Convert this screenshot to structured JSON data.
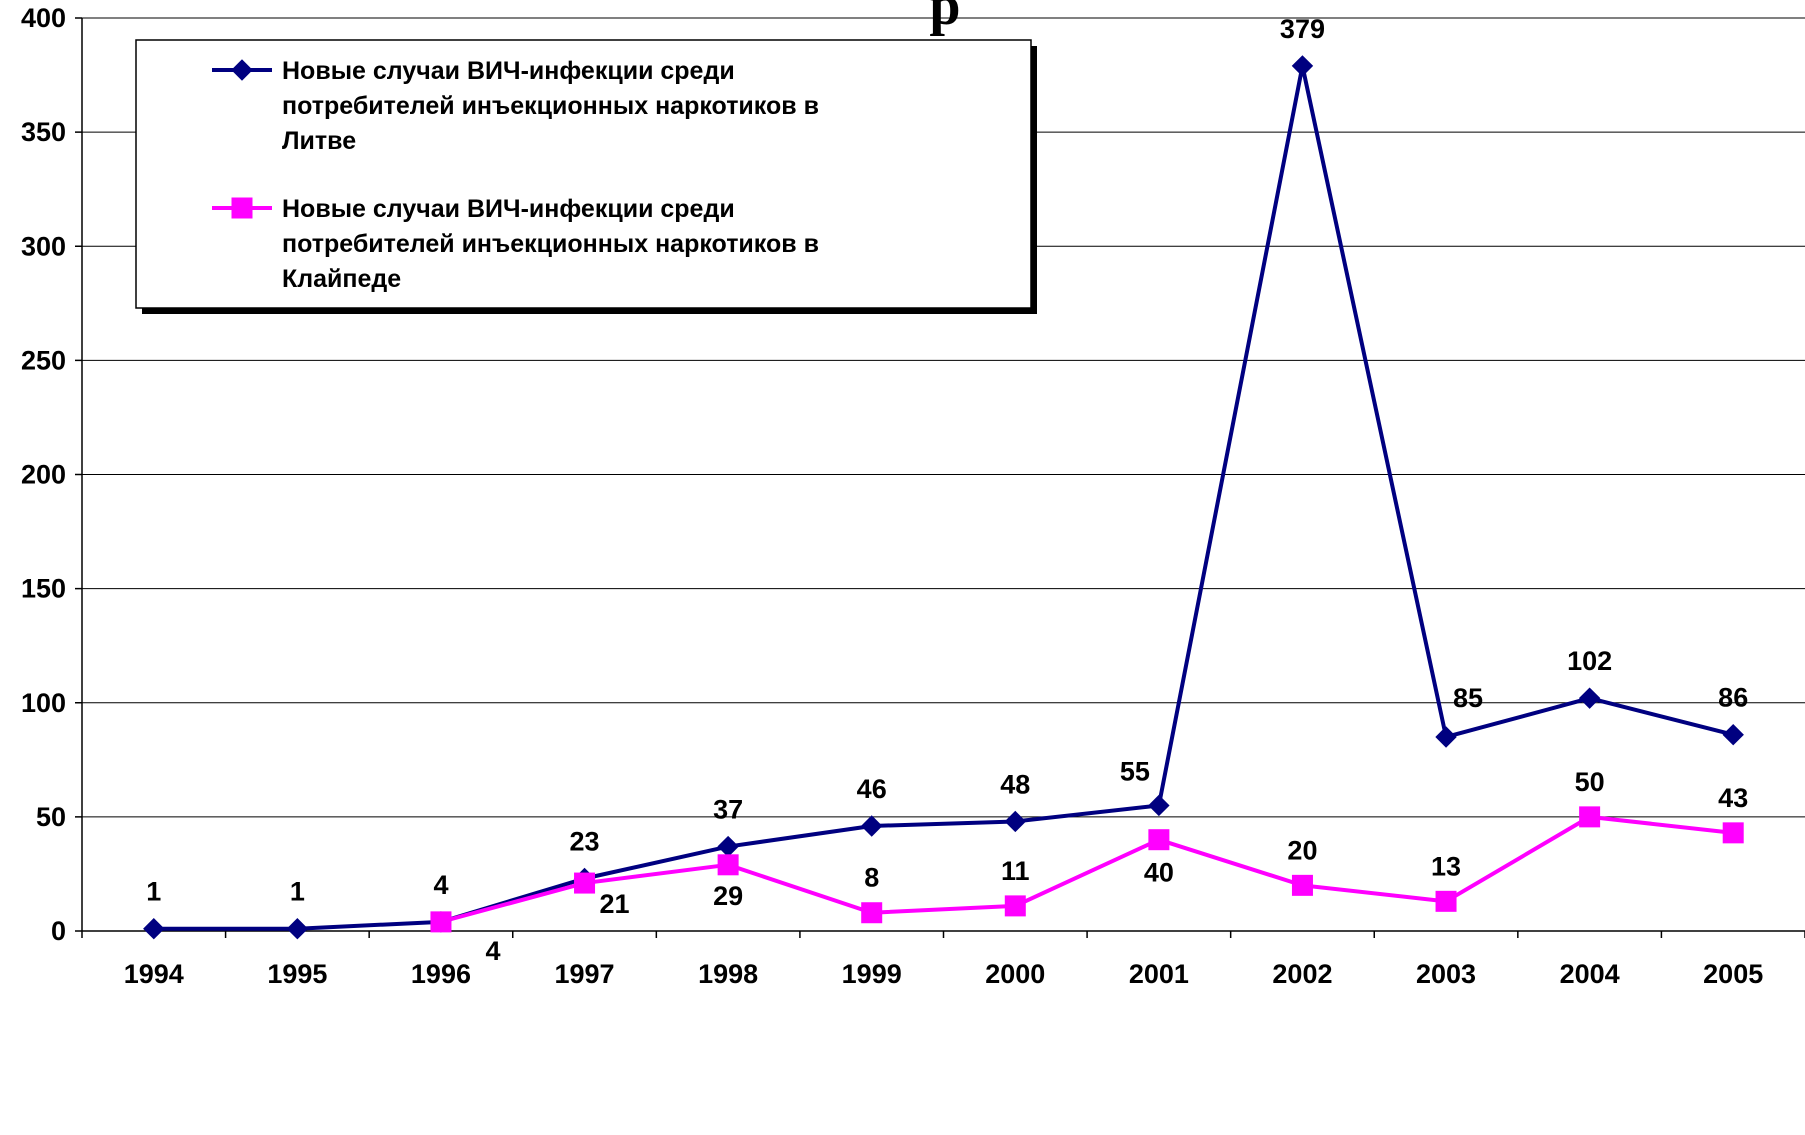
{
  "chart_data": {
    "type": "line",
    "title_fragment": "р",
    "categories": [
      "1994",
      "1995",
      "1996",
      "1997",
      "1998",
      "1999",
      "2000",
      "2001",
      "2002",
      "2003",
      "2004",
      "2005"
    ],
    "ylim": [
      0,
      400
    ],
    "yticks": [
      "0",
      "50",
      "100",
      "150",
      "200",
      "250",
      "300",
      "350",
      "400"
    ],
    "grid": true,
    "legend_position": "top-left",
    "series": [
      {
        "name_lines": [
          "Новые случаи ВИЧ-инфекции среди",
          "потребителей инъекционных наркотиков в",
          "Литве"
        ],
        "values": [
          1,
          1,
          4,
          23,
          37,
          46,
          48,
          55,
          379,
          85,
          102,
          86
        ],
        "color": "#000080",
        "marker": "diamond"
      },
      {
        "name_lines": [
          "Новые случаи ВИЧ-инфекции среди",
          "потребителей инъекционных наркотиков в",
          "Клайпеде"
        ],
        "values": [
          null,
          null,
          4,
          21,
          29,
          8,
          11,
          40,
          20,
          13,
          50,
          43
        ],
        "color": "#FF00FF",
        "marker": "square"
      }
    ]
  }
}
